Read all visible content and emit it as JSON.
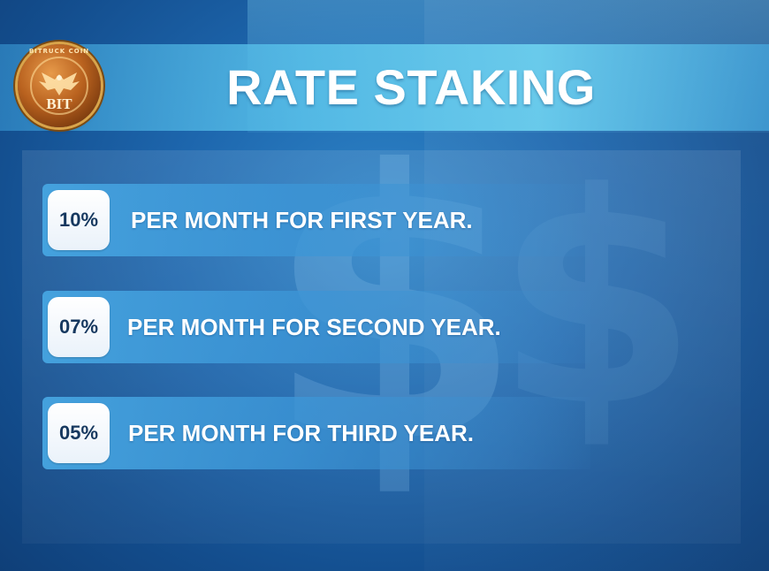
{
  "header": {
    "title": "RATE STAKING",
    "logo": {
      "ring_text": "BITRUCK COIN",
      "mark": "BIT",
      "icon": "eagle-coin-logo"
    }
  },
  "rates": [
    {
      "percent": "10%",
      "label": "PER MONTH FOR FIRST YEAR."
    },
    {
      "percent": "07%",
      "label": "PER MONTH FOR SECOND YEAR."
    },
    {
      "percent": "05%",
      "label": "PER MONTH FOR THIRD YEAR."
    }
  ],
  "colors": {
    "background": "#1d66ad",
    "header_band": "#5ac3eb",
    "row": "#46a5e1",
    "badge_text": "#16385f",
    "text": "#ffffff",
    "logo_gold": "#b9621f"
  }
}
